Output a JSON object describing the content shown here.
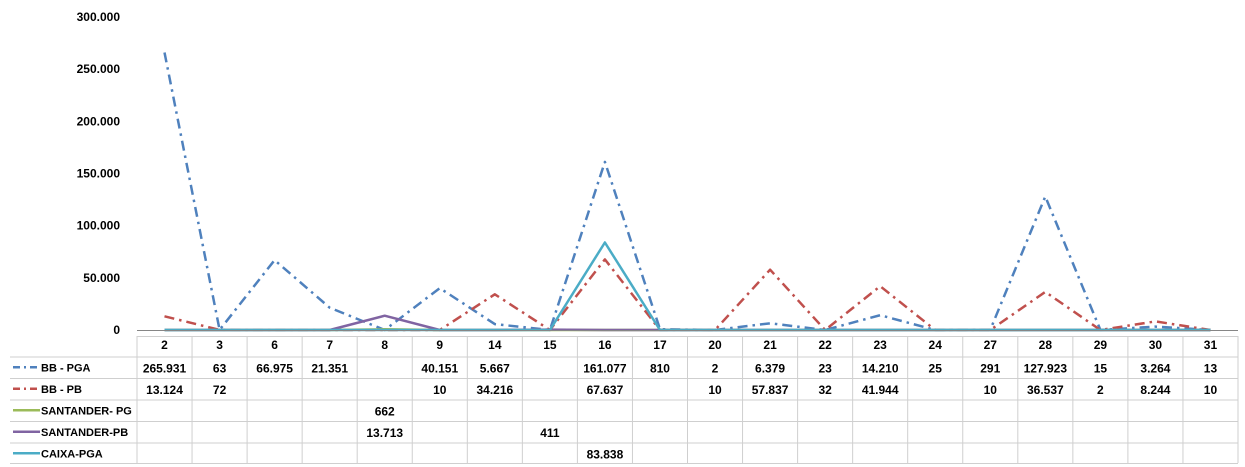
{
  "chart_data": {
    "type": "line",
    "title": "",
    "xlabel": "",
    "ylabel": "",
    "ylim": [
      0,
      300000
    ],
    "y_ticks": [
      "0",
      "50.000",
      "100.000",
      "150.000",
      "200.000",
      "250.000",
      "300.000"
    ],
    "grid": false,
    "legend": "data-table-below",
    "categories": [
      "2",
      "3",
      "6",
      "7",
      "8",
      "9",
      "14",
      "15",
      "16",
      "17",
      "20",
      "21",
      "22",
      "23",
      "24",
      "27",
      "28",
      "29",
      "30",
      "31"
    ],
    "series": [
      {
        "name": "BB - PGA",
        "color": "#4F81BD",
        "style": "dash-dot",
        "values": [
          265931,
          63,
          66975,
          21351,
          null,
          40151,
          5667,
          null,
          161077,
          810,
          2,
          6379,
          23,
          14210,
          25,
          291,
          127923,
          15,
          3264,
          13
        ],
        "labels": [
          "265.931",
          "63",
          "66.975",
          "21.351",
          "",
          "40.151",
          "5.667",
          "",
          "161.077",
          "810",
          "2",
          "6.379",
          "23",
          "14.210",
          "25",
          "291",
          "127.923",
          "15",
          "3.264",
          "13"
        ]
      },
      {
        "name": "BB - PB",
        "color": "#C0504D",
        "style": "dash-dot",
        "values": [
          13124,
          72,
          null,
          null,
          null,
          10,
          34216,
          null,
          67637,
          null,
          10,
          57837,
          32,
          41944,
          null,
          10,
          36537,
          2,
          8244,
          10
        ],
        "labels": [
          "13.124",
          "72",
          "",
          "",
          "",
          "10",
          "34.216",
          "",
          "67.637",
          "",
          "10",
          "57.837",
          "32",
          "41.944",
          "",
          "10",
          "36.537",
          "2",
          "8.244",
          "10"
        ]
      },
      {
        "name": "SANTANDER- PG",
        "color": "#9BBB59",
        "style": "solid",
        "values": [
          null,
          null,
          null,
          null,
          662,
          null,
          null,
          null,
          null,
          null,
          null,
          null,
          null,
          null,
          null,
          null,
          null,
          null,
          null,
          null
        ],
        "labels": [
          "",
          "",
          "",
          "",
          "662",
          "",
          "",
          "",
          "",
          "",
          "",
          "",
          "",
          "",
          "",
          "",
          "",
          "",
          "",
          ""
        ]
      },
      {
        "name": "SANTANDER-PB",
        "color": "#8064A2",
        "style": "solid",
        "values": [
          null,
          null,
          null,
          null,
          13713,
          null,
          null,
          411,
          null,
          null,
          null,
          null,
          null,
          null,
          null,
          null,
          null,
          null,
          null,
          null
        ],
        "labels": [
          "",
          "",
          "",
          "",
          "13.713",
          "",
          "",
          "411",
          "",
          "",
          "",
          "",
          "",
          "",
          "",
          "",
          "",
          "",
          "",
          ""
        ]
      },
      {
        "name": "CAIXA-PGA",
        "color": "#4BACC6",
        "style": "solid",
        "values": [
          null,
          null,
          null,
          null,
          null,
          null,
          null,
          null,
          83838,
          null,
          null,
          null,
          null,
          null,
          null,
          null,
          null,
          null,
          null,
          null
        ],
        "labels": [
          "",
          "",
          "",
          "",
          "",
          "",
          "",
          "",
          "83.838",
          "",
          "",
          "",
          "",
          "",
          "",
          "",
          "",
          "",
          "",
          ""
        ]
      }
    ]
  }
}
